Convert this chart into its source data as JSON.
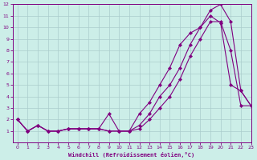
{
  "xlabel": "Windchill (Refroidissement éolien,°C)",
  "bg_color": "#cceee8",
  "grid_color": "#aacccc",
  "line_color": "#800080",
  "xlim": [
    -0.5,
    23
  ],
  "ylim": [
    0,
    12
  ],
  "xticks": [
    0,
    1,
    2,
    3,
    4,
    5,
    6,
    7,
    8,
    9,
    10,
    11,
    12,
    13,
    14,
    15,
    16,
    17,
    18,
    19,
    20,
    21,
    22,
    23
  ],
  "yticks": [
    1,
    2,
    3,
    4,
    5,
    6,
    7,
    8,
    9,
    10,
    11,
    12
  ],
  "line1_x": [
    0,
    1,
    2,
    3,
    4,
    5,
    6,
    7,
    8,
    9,
    10,
    11,
    12,
    13,
    14,
    15,
    16,
    17,
    18,
    19,
    20,
    21,
    22,
    23
  ],
  "line1_y": [
    2.0,
    1.0,
    1.5,
    1.0,
    1.0,
    1.2,
    1.2,
    1.2,
    1.2,
    2.5,
    1.0,
    1.0,
    1.2,
    2.0,
    3.0,
    4.0,
    5.5,
    7.5,
    9.0,
    10.5,
    10.5,
    8.0,
    3.2,
    3.2
  ],
  "line2_x": [
    0,
    1,
    2,
    3,
    4,
    5,
    6,
    7,
    8,
    9,
    10,
    11,
    12,
    13,
    14,
    15,
    16,
    17,
    18,
    19,
    20,
    21,
    22,
    23
  ],
  "line2_y": [
    2.0,
    1.0,
    1.5,
    1.0,
    1.0,
    1.2,
    1.2,
    1.2,
    1.2,
    1.0,
    1.0,
    1.0,
    2.5,
    3.5,
    5.0,
    6.5,
    8.5,
    9.5,
    10.0,
    11.5,
    12.0,
    10.5,
    4.5,
    3.2
  ],
  "line3_x": [
    0,
    1,
    2,
    3,
    4,
    5,
    6,
    7,
    8,
    9,
    10,
    11,
    12,
    13,
    14,
    15,
    16,
    17,
    18,
    19,
    20,
    21,
    22,
    23
  ],
  "line3_y": [
    2.0,
    1.0,
    1.5,
    1.0,
    1.0,
    1.2,
    1.2,
    1.2,
    1.2,
    1.0,
    1.0,
    1.0,
    1.5,
    2.5,
    4.0,
    5.0,
    6.5,
    8.5,
    10.0,
    11.0,
    10.4,
    5.0,
    4.5,
    3.2
  ]
}
